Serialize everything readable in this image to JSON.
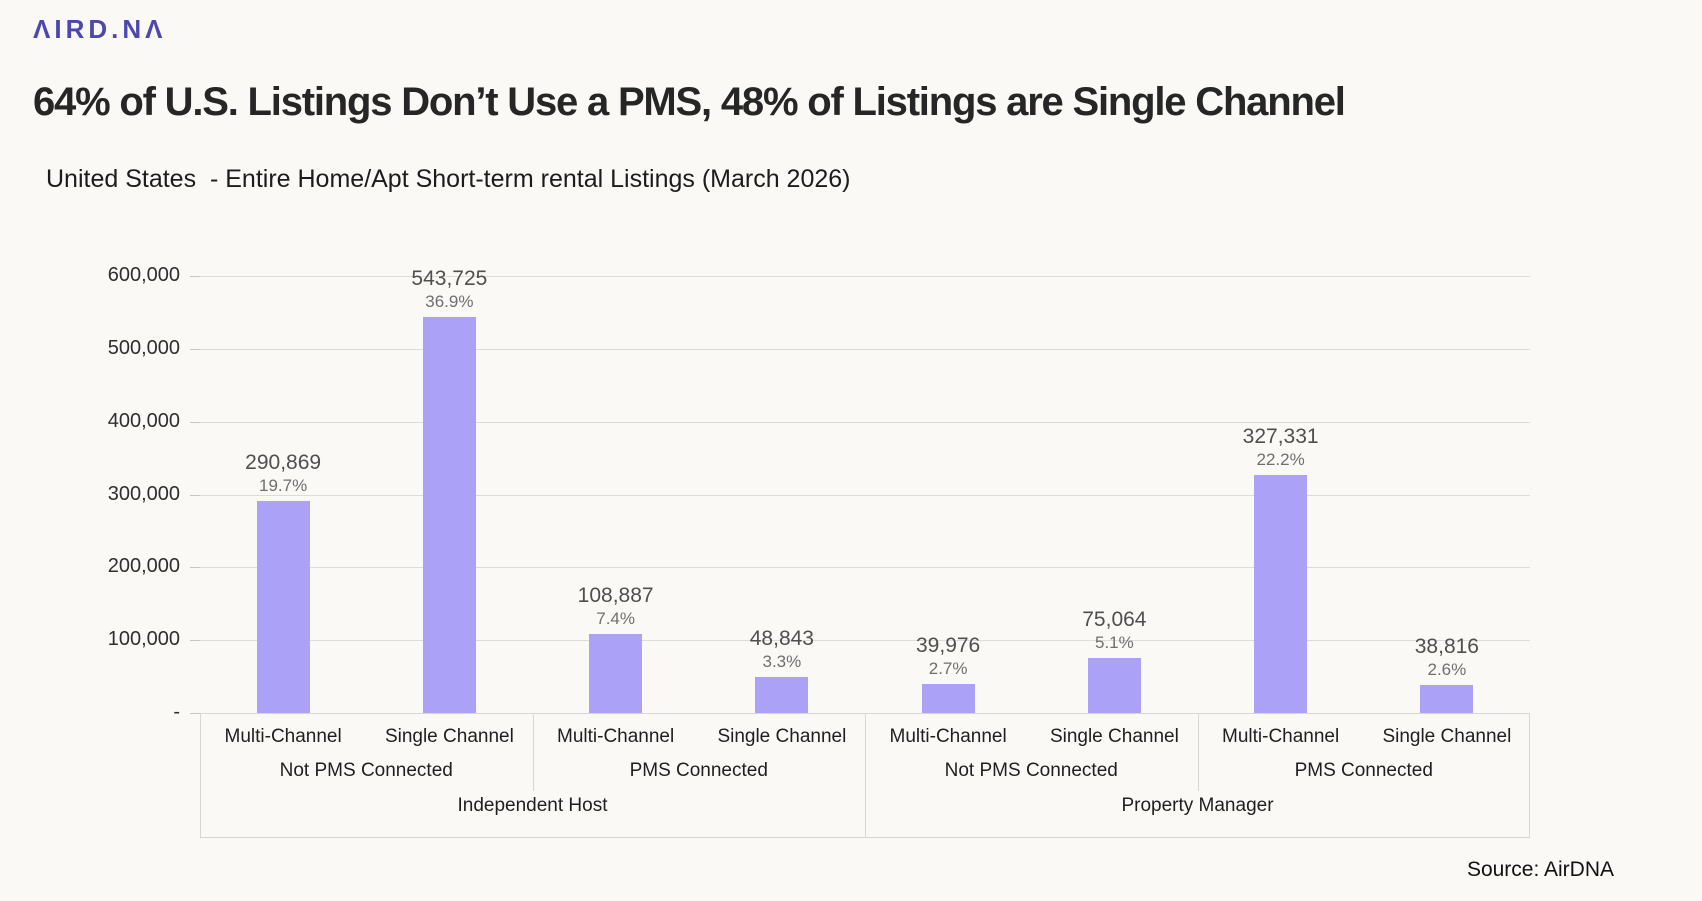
{
  "brand": {
    "logo_text": "ΛIRD.ΝΛ"
  },
  "header": {
    "title": "64% of U.S. Listings Don’t Use a PMS, 48% of Listings are Single Channel",
    "subtitle": "United States  - Entire Home/Apt Short-term rental Listings (March 2026)"
  },
  "footer": {
    "source": "Source: AirDNA"
  },
  "colors": {
    "bar": "#aba1f7",
    "background": "#fbf9f6",
    "gridline": "#dedcd9",
    "logo": "#4c48ae"
  },
  "chart_data": {
    "type": "bar",
    "title": "64% of U.S. Listings Don’t Use a PMS, 48% of Listings are Single Channel",
    "subtitle": "United States  - Entire Home/Apt Short-term rental Listings (March 2026)",
    "ylabel": "",
    "xlabel": "",
    "ylim": [
      0,
      600000
    ],
    "ytick_interval": 100000,
    "yticks": [
      {
        "value": 0,
        "label": "-"
      },
      {
        "value": 100000,
        "label": "100,000"
      },
      {
        "value": 200000,
        "label": "200,000"
      },
      {
        "value": 300000,
        "label": "300,000"
      },
      {
        "value": 400000,
        "label": "400,000"
      },
      {
        "value": 500000,
        "label": "500,000"
      },
      {
        "value": 600000,
        "label": "600,000"
      }
    ],
    "grid": true,
    "legend_position": "none",
    "series": [
      {
        "name": "Listings",
        "values": [
          290869,
          543725,
          108887,
          48843,
          39976,
          75064,
          327331,
          38816
        ],
        "value_labels": [
          "290,869",
          "543,725",
          "108,887",
          "48,843",
          "39,976",
          "75,064",
          "327,331",
          "38,816"
        ],
        "pct_labels": [
          "19.7%",
          "36.9%",
          "7.4%",
          "3.3%",
          "2.7%",
          "5.1%",
          "22.2%",
          "2.6%"
        ]
      }
    ],
    "categories": [
      "Multi-Channel",
      "Single Channel",
      "Multi-Channel",
      "Single Channel",
      "Multi-Channel",
      "Single Channel",
      "Multi-Channel",
      "Single Channel"
    ],
    "pms_groups": [
      {
        "label": "Not PMS Connected",
        "span": [
          0,
          2
        ]
      },
      {
        "label": "PMS Connected",
        "span": [
          2,
          4
        ]
      },
      {
        "label": "Not PMS Connected",
        "span": [
          4,
          6
        ]
      },
      {
        "label": "PMS Connected",
        "span": [
          6,
          8
        ]
      }
    ],
    "host_groups": [
      {
        "label": "Independent Host",
        "span": [
          0,
          4
        ]
      },
      {
        "label": "Property Manager",
        "span": [
          4,
          8
        ]
      }
    ]
  }
}
